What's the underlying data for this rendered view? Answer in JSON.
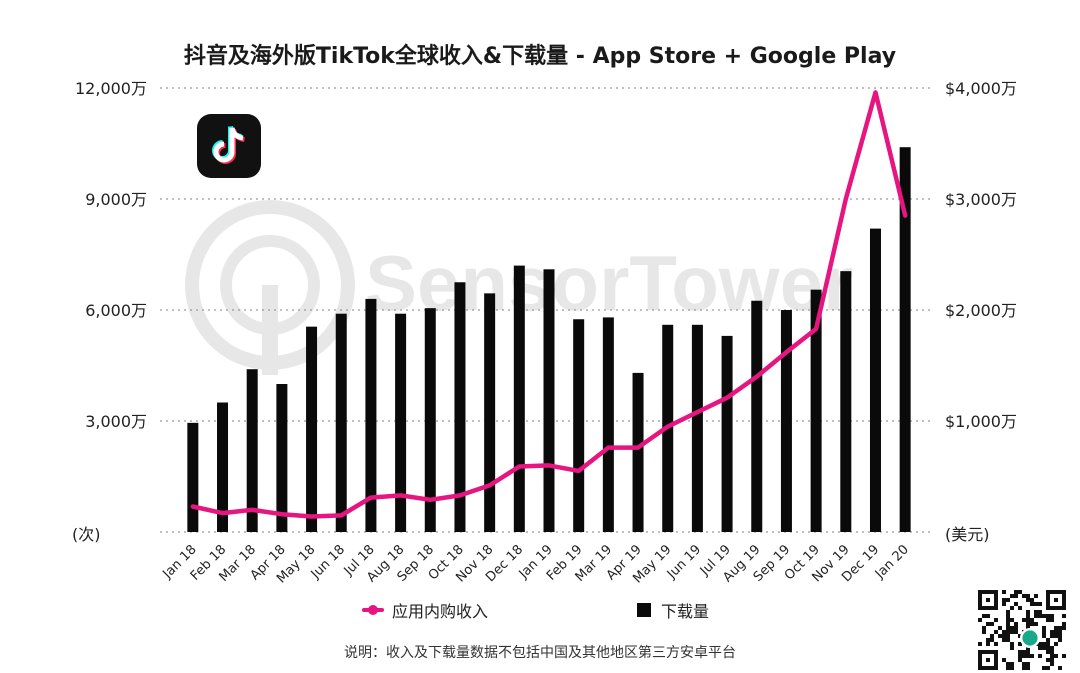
{
  "title": "抖音及海外版TikTok全球收入&下载量 - App Store + Google Play",
  "note": "说明：收入及下载量数据不包括中国及其他地区第三方安卓平台",
  "watermark": "SensorTower",
  "legend": {
    "line_label": "应用内购收入",
    "bar_label": "下载量"
  },
  "colors": {
    "line": "#E6157F",
    "bar": "#0a0a0a",
    "grid": "#9a9a9a"
  },
  "icons": {
    "logo": "tiktok-logo-icon",
    "qr": "qr-code-icon"
  },
  "chart_data": {
    "type": "bar+line",
    "categories": [
      "Jan 18",
      "Feb 18",
      "Mar 18",
      "Apr 18",
      "May 18",
      "Jun 18",
      "Jul 18",
      "Aug 18",
      "Sep 18",
      "Oct 18",
      "Nov 18",
      "Dec 18",
      "Jan 19",
      "Feb 19",
      "Mar 19",
      "Apr 19",
      "May 19",
      "Jun 19",
      "Jul 19",
      "Aug 19",
      "Sep 19",
      "Oct 19",
      "Nov 19",
      "Dec 19",
      "Jan 20"
    ],
    "left_axis": {
      "ylim": [
        0,
        12000
      ],
      "ticks": [
        3000,
        6000,
        9000,
        12000
      ],
      "tick_labels": [
        "3,000万",
        "6,000万",
        "9,000万",
        "12,000万"
      ],
      "unit_label": "(次)"
    },
    "right_axis": {
      "ylim": [
        0,
        4000
      ],
      "ticks": [
        1000,
        2000,
        3000,
        4000
      ],
      "tick_labels": [
        "$1,000万",
        "$2,000万",
        "$3,000万",
        "$4,000万"
      ],
      "unit_label": "(美元)"
    },
    "series": [
      {
        "name": "下载量",
        "type": "bar",
        "axis": "left",
        "values": [
          2950,
          3500,
          4400,
          4000,
          5550,
          5900,
          6300,
          5900,
          6050,
          6750,
          6450,
          7200,
          7100,
          5750,
          5800,
          4300,
          5600,
          5600,
          5300,
          6250,
          6000,
          6550,
          7050,
          8200,
          10400
        ]
      },
      {
        "name": "应用内购收入",
        "type": "line",
        "axis": "right",
        "values": [
          230,
          170,
          200,
          160,
          140,
          150,
          310,
          330,
          290,
          330,
          420,
          590,
          600,
          550,
          760,
          760,
          950,
          1080,
          1210,
          1400,
          1620,
          1830,
          3000,
          3960,
          2850
        ]
      }
    ],
    "grid": true,
    "grid_style": "dotted horizontal",
    "legend_position": "bottom"
  }
}
